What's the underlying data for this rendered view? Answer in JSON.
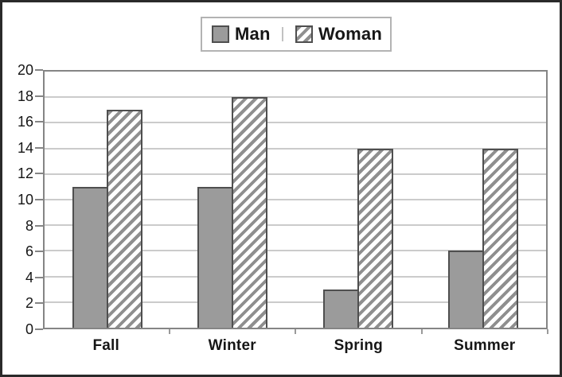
{
  "legend": {
    "items": [
      {
        "label": "Man",
        "swatch": "solid-gray"
      },
      {
        "label": "Woman",
        "swatch": "diagonal-hatch"
      }
    ]
  },
  "colors": {
    "man_fill": "#9b9b9b",
    "hatch_line": "#8f8f8f",
    "bar_border": "#4f4f4f",
    "gridline": "#cbcbcb",
    "plot_border": "#858585",
    "frame_border": "#2a2a2a",
    "legend_border": "#b3b3b3"
  },
  "chart_data": {
    "type": "bar",
    "title": "",
    "xlabel": "",
    "ylabel": "",
    "categories": [
      "Fall",
      "Winter",
      "Spring",
      "Summer"
    ],
    "series": [
      {
        "name": "Man",
        "values": [
          11,
          11,
          3,
          6
        ]
      },
      {
        "name": "Woman",
        "values": [
          17,
          18,
          14,
          14
        ]
      }
    ],
    "ylim": [
      0,
      20
    ],
    "ytick_step": 2,
    "yticks": [
      0,
      2,
      4,
      6,
      8,
      10,
      12,
      14,
      16,
      18,
      20
    ],
    "grid": true,
    "legend_position": "top-center",
    "hatch_direction": "forward-slash"
  }
}
